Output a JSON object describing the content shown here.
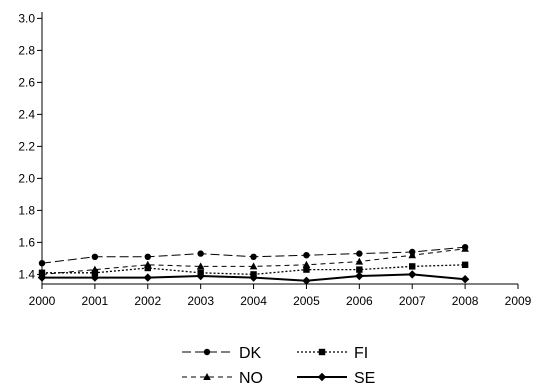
{
  "chart_data": {
    "type": "line",
    "title": "",
    "xlabel": "",
    "ylabel": "",
    "x": [
      2000,
      2001,
      2002,
      2003,
      2004,
      2005,
      2006,
      2007,
      2008
    ],
    "xlim": [
      2000,
      2009
    ],
    "ylim": [
      1.34,
      3.04
    ],
    "xticks": [
      "2000",
      "2001",
      "2002",
      "2003",
      "2004",
      "2005",
      "2006",
      "2007",
      "2008",
      "2009"
    ],
    "yticks": [
      "1.4",
      "1.6",
      "1.8",
      "2.0",
      "2.2",
      "2.4",
      "2.6",
      "2.8",
      "3.0"
    ],
    "grid": false,
    "legend_position": "bottom",
    "series": [
      {
        "name": "DK",
        "marker": "circle",
        "dash": "long-dash",
        "color": "#000000",
        "values": [
          1.47,
          1.51,
          1.51,
          1.53,
          1.51,
          1.52,
          1.53,
          1.54,
          1.57
        ]
      },
      {
        "name": "FI",
        "marker": "square",
        "dash": "dotted",
        "color": "#000000",
        "values": [
          1.41,
          1.41,
          1.44,
          1.41,
          1.4,
          1.43,
          1.43,
          1.45,
          1.46
        ]
      },
      {
        "name": "NO",
        "marker": "triangle",
        "dash": "short-dash",
        "color": "#000000",
        "values": [
          1.4,
          1.43,
          1.46,
          1.45,
          1.45,
          1.46,
          1.48,
          1.52,
          1.56
        ]
      },
      {
        "name": "SE",
        "marker": "diamond",
        "dash": "solid",
        "color": "#000000",
        "values": [
          1.38,
          1.38,
          1.38,
          1.39,
          1.38,
          1.36,
          1.39,
          1.4,
          1.37
        ]
      }
    ]
  }
}
